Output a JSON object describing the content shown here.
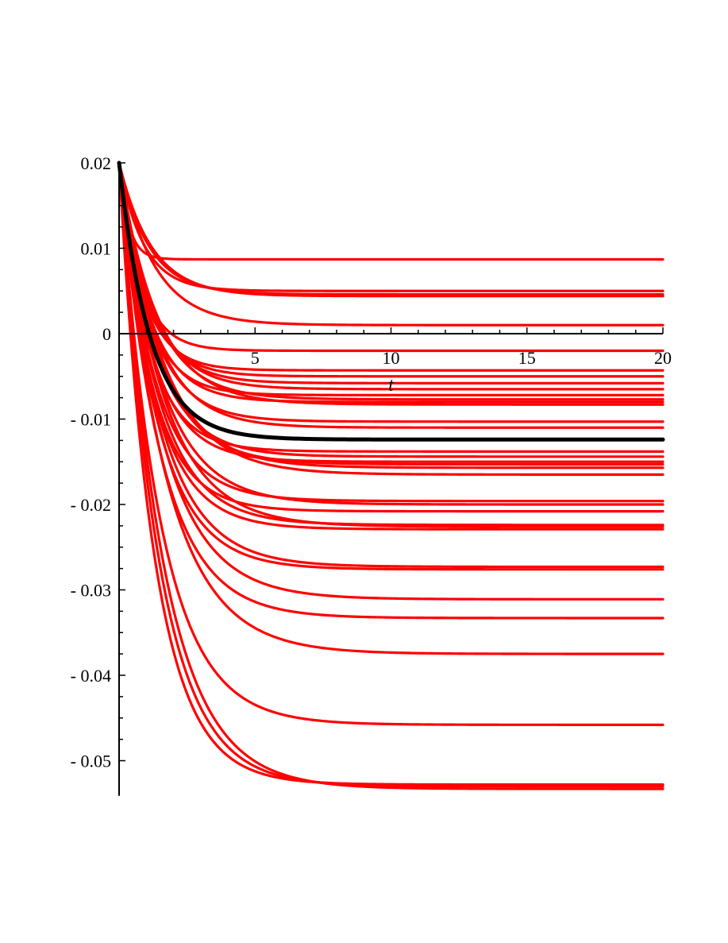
{
  "chart_data": {
    "type": "line",
    "title": "",
    "xlabel": "t",
    "ylabel": "",
    "xlim": [
      0,
      20
    ],
    "ylim": [
      -0.053,
      0.02
    ],
    "grid": false,
    "x_axis_at_y": 0,
    "x_ticks": [
      {
        "value": 5,
        "label": "5"
      },
      {
        "value": 10,
        "label": "10"
      },
      {
        "value": 15,
        "label": "15"
      },
      {
        "value": 20,
        "label": "20"
      }
    ],
    "y_ticks": [
      {
        "value": 0.02,
        "label": "0.02"
      },
      {
        "value": 0.01,
        "label": "0.01"
      },
      {
        "value": 0,
        "label": "0"
      },
      {
        "value": -0.01,
        "label": "- 0.01"
      },
      {
        "value": -0.02,
        "label": "- 0.02"
      },
      {
        "value": -0.03,
        "label": "- 0.03"
      },
      {
        "value": -0.04,
        "label": "- 0.04"
      },
      {
        "value": -0.05,
        "label": "- 0.05"
      }
    ],
    "initial_value": 0.02,
    "curve_model": "y(t) = final + (0.02 - final) * exp(-t / tau)",
    "colors": {
      "series": "#ff0000",
      "highlight": "#000000"
    },
    "highlight_series": {
      "final": -0.0124,
      "tau": 1.15
    },
    "series": [
      {
        "final": 0.0087,
        "tau": 0.35
      },
      {
        "final": 0.005,
        "tau": 0.9
      },
      {
        "final": 0.0046,
        "tau": 1.1
      },
      {
        "final": 0.0044,
        "tau": 1.2
      },
      {
        "final": 0.001,
        "tau": 1.3
      },
      {
        "final": -0.002,
        "tau": 0.8
      },
      {
        "final": -0.0043,
        "tau": 0.9
      },
      {
        "final": -0.005,
        "tau": 1.0
      },
      {
        "final": -0.0058,
        "tau": 1.1
      },
      {
        "final": -0.0065,
        "tau": 1.2
      },
      {
        "final": -0.0072,
        "tau": 1.0
      },
      {
        "final": -0.0077,
        "tau": 1.3
      },
      {
        "final": -0.008,
        "tau": 1.1
      },
      {
        "final": -0.0083,
        "tau": 1.4
      },
      {
        "final": -0.0103,
        "tau": 1.2
      },
      {
        "final": -0.011,
        "tau": 1.3
      },
      {
        "final": -0.0138,
        "tau": 1.1
      },
      {
        "final": -0.0144,
        "tau": 1.3
      },
      {
        "final": -0.015,
        "tau": 1.2
      },
      {
        "final": -0.0153,
        "tau": 1.4
      },
      {
        "final": -0.0157,
        "tau": 1.5
      },
      {
        "final": -0.0165,
        "tau": 1.6
      },
      {
        "final": -0.0196,
        "tau": 1.3
      },
      {
        "final": -0.02,
        "tau": 1.5
      },
      {
        "final": -0.0208,
        "tau": 1.2
      },
      {
        "final": -0.0224,
        "tau": 1.4
      },
      {
        "final": -0.0226,
        "tau": 1.6
      },
      {
        "final": -0.0229,
        "tau": 1.3
      },
      {
        "final": -0.0273,
        "tau": 1.5
      },
      {
        "final": -0.0276,
        "tau": 1.4
      },
      {
        "final": -0.0311,
        "tau": 1.6
      },
      {
        "final": -0.0333,
        "tau": 1.5
      },
      {
        "final": -0.0375,
        "tau": 1.7
      },
      {
        "final": -0.0458,
        "tau": 1.5
      },
      {
        "final": -0.0528,
        "tau": 1.3
      },
      {
        "final": -0.053,
        "tau": 1.45
      },
      {
        "final": -0.0533,
        "tau": 1.6
      }
    ]
  }
}
